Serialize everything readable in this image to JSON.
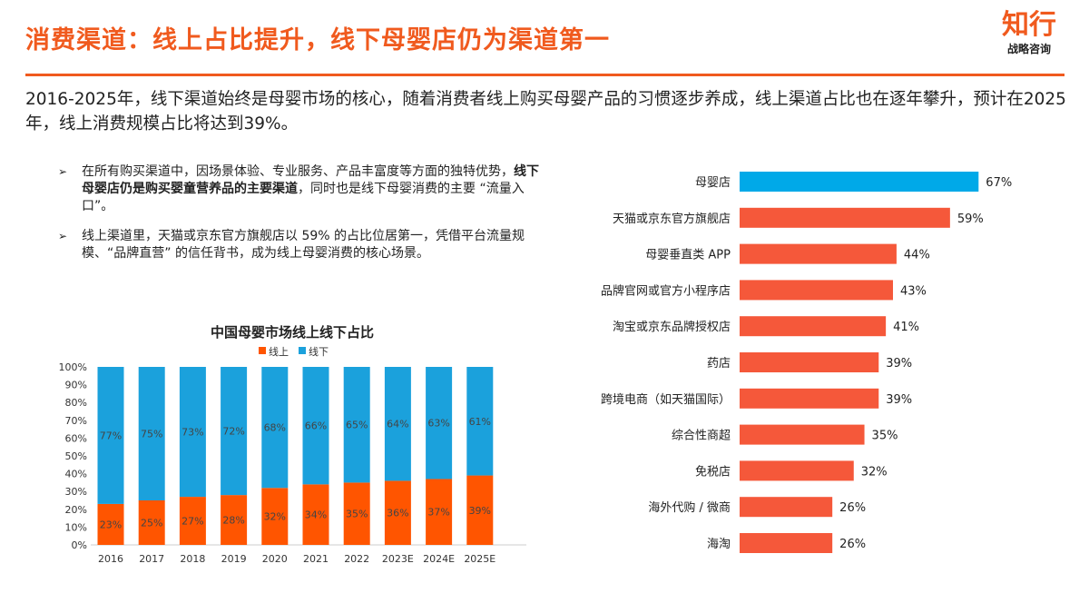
{
  "header": {
    "title": "消费渠道：线上占比提升，线下母婴店仍为渠道第一",
    "logo_main": "知行",
    "logo_sub": "战略咨询"
  },
  "intro": "2016-2025年，线下渠道始终是母婴市场的核心，随着消费者线上购买母婴产品的习惯逐步养成，线上渠道占比也在逐年攀升，预计在2025年，线上消费规模占比将达到39%。",
  "bullets": [
    {
      "pre": "在所有购买渠道中，因场景体验、专业服务、产品丰富度等方面的独特优势，",
      "bold": "线下母婴店仍是购买婴童营养品的主要渠道",
      "post": "，同时也是线下母婴消费的主要 “流量入口”。"
    },
    {
      "pre": "线上渠道里，天猫或京东官方旗舰店以 59% 的占比位居第一，凭借平台流量规模、“品牌直营” 的信任背书，成为线上母婴消费的核心场景。",
      "bold": "",
      "post": ""
    }
  ],
  "bullet_marker": "➢",
  "chart_data": [
    {
      "type": "bar",
      "stacked": true,
      "title": "中国母婴市场线上线下占比",
      "categories": [
        "2016",
        "2017",
        "2018",
        "2019",
        "2020",
        "2021",
        "2022",
        "2023E",
        "2024E",
        "2025E"
      ],
      "series": [
        {
          "name": "线上",
          "color": "#ff5500",
          "values": [
            23,
            25,
            27,
            28,
            32,
            34,
            35,
            36,
            37,
            39
          ]
        },
        {
          "name": "线下",
          "color": "#1ba1dc",
          "values": [
            77,
            75,
            73,
            72,
            68,
            66,
            65,
            64,
            63,
            61
          ]
        }
      ],
      "ylim": [
        0,
        100
      ],
      "yticks": [
        "0%",
        "10%",
        "20%",
        "30%",
        "40%",
        "50%",
        "60%",
        "70%",
        "80%",
        "90%",
        "100%"
      ],
      "legend": "top"
    },
    {
      "type": "bar",
      "orientation": "horizontal",
      "categories": [
        "母婴店",
        "天猫或京东官方旗舰店",
        "母婴垂直类 APP",
        "品牌官网或官方小程序店",
        "淘宝或京东品牌授权店",
        "药店",
        "跨境电商（如天猫国际）",
        "综合性商超",
        "免税店",
        "海外代购 / 微商",
        "海淘"
      ],
      "values": [
        67,
        59,
        44,
        43,
        41,
        39,
        39,
        35,
        32,
        26,
        26
      ],
      "labels": [
        "67%",
        "59%",
        "44%",
        "43%",
        "41%",
        "39%",
        "39%",
        "35%",
        "32%",
        "26%",
        "26%"
      ],
      "highlight_color": "#00a9e8",
      "color": "#f5583a"
    }
  ]
}
